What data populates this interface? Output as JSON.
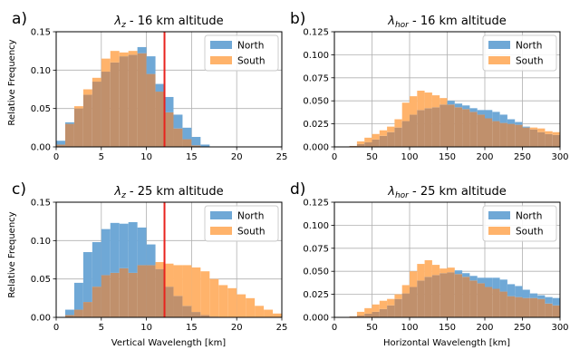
{
  "figure": {
    "ylabel": "Relative Frequency",
    "xlabel_left": "Vertical Wavelength [km]",
    "xlabel_right": "Horizontal Wavelength [km]"
  },
  "colors": {
    "north": "#6fa8d6",
    "south": "#ffb36b",
    "overlap": "#c0906c",
    "marker": "#e8231e",
    "grid": "#b0b0b0"
  },
  "chart_data": [
    {
      "type": "bar",
      "panel": "a)",
      "title_sym": "λ",
      "title_sub": "z",
      "title_rest": " - 16 km altitude",
      "xlim": [
        0,
        25
      ],
      "ylim": [
        0,
        0.15
      ],
      "xticks": [
        "0",
        "5",
        "10",
        "15",
        "20",
        "25"
      ],
      "yticks": [
        "0.00",
        "0.05",
        "0.10",
        "0.15"
      ],
      "xticks_v": [
        0,
        5,
        10,
        15,
        20,
        25
      ],
      "yticks_v": [
        0,
        0.05,
        0.1,
        0.15
      ],
      "bin_start": 0,
      "bin_width": 1,
      "vline": 12,
      "legend": [
        "North",
        "South"
      ],
      "series": [
        {
          "name": "North",
          "values": [
            0.008,
            0.032,
            0.05,
            0.068,
            0.085,
            0.098,
            0.11,
            0.118,
            0.12,
            0.13,
            0.118,
            0.082,
            0.065,
            0.042,
            0.025,
            0.013,
            0.003,
            0,
            0,
            0,
            0,
            0,
            0,
            0,
            0
          ]
        },
        {
          "name": "South",
          "values": [
            0.003,
            0.03,
            0.053,
            0.075,
            0.09,
            0.115,
            0.125,
            0.123,
            0.125,
            0.122,
            0.095,
            0.072,
            0.045,
            0.024,
            0.01,
            0.002,
            0,
            0,
            0,
            0,
            0,
            0,
            0,
            0,
            0
          ]
        }
      ]
    },
    {
      "type": "bar",
      "panel": "b)",
      "title_sym": "λ",
      "title_sub": "hor",
      "title_rest": " - 16 km altitude",
      "xlim": [
        0,
        300
      ],
      "ylim": [
        0,
        0.125
      ],
      "xticks": [
        "0",
        "50",
        "100",
        "150",
        "200",
        "250",
        "300"
      ],
      "yticks": [
        "0.000",
        "0.025",
        "0.050",
        "0.075",
        "0.100",
        "0.125"
      ],
      "xticks_v": [
        0,
        50,
        100,
        150,
        200,
        250,
        300
      ],
      "yticks_v": [
        0,
        0.025,
        0.05,
        0.075,
        0.1,
        0.125
      ],
      "bin_start": 20,
      "bin_width": 10,
      "legend": [
        "North",
        "South"
      ],
      "series": [
        {
          "name": "North",
          "values": [
            0.001,
            0.003,
            0.005,
            0.008,
            0.012,
            0.016,
            0.021,
            0.028,
            0.035,
            0.04,
            0.042,
            0.043,
            0.046,
            0.05,
            0.047,
            0.045,
            0.042,
            0.04,
            0.04,
            0.038,
            0.035,
            0.03,
            0.027,
            0.022,
            0.019,
            0.016,
            0.014,
            0.013
          ]
        },
        {
          "name": "South",
          "values": [
            0.001,
            0.006,
            0.01,
            0.014,
            0.018,
            0.022,
            0.03,
            0.048,
            0.055,
            0.061,
            0.059,
            0.056,
            0.053,
            0.046,
            0.043,
            0.041,
            0.038,
            0.035,
            0.031,
            0.028,
            0.026,
            0.025,
            0.024,
            0.021,
            0.021,
            0.02,
            0.017,
            0.016
          ]
        }
      ]
    },
    {
      "type": "bar",
      "panel": "c)",
      "title_sym": "λ",
      "title_sub": "z",
      "title_rest": " - 25 km altitude",
      "xlim": [
        0,
        25
      ],
      "ylim": [
        0,
        0.15
      ],
      "xticks": [
        "0",
        "5",
        "10",
        "15",
        "20",
        "25"
      ],
      "yticks": [
        "0.00",
        "0.05",
        "0.10",
        "0.15"
      ],
      "xticks_v": [
        0,
        5,
        10,
        15,
        20,
        25
      ],
      "yticks_v": [
        0,
        0.05,
        0.1,
        0.15
      ],
      "bin_start": 1,
      "bin_width": 1,
      "vline": 12,
      "legend": [
        "North",
        "South"
      ],
      "series": [
        {
          "name": "North",
          "values": [
            0.01,
            0.045,
            0.085,
            0.098,
            0.115,
            0.123,
            0.122,
            0.124,
            0.117,
            0.095,
            0.063,
            0.04,
            0.028,
            0.015,
            0.007,
            0.003,
            0.001,
            0,
            0,
            0,
            0,
            0,
            0,
            0
          ]
        },
        {
          "name": "South",
          "values": [
            0.003,
            0.01,
            0.02,
            0.04,
            0.055,
            0.058,
            0.064,
            0.058,
            0.068,
            0.068,
            0.072,
            0.07,
            0.068,
            0.068,
            0.065,
            0.06,
            0.05,
            0.042,
            0.038,
            0.03,
            0.025,
            0.015,
            0.01,
            0.005
          ]
        }
      ]
    },
    {
      "type": "bar",
      "panel": "d)",
      "title_sym": "λ",
      "title_sub": "hor",
      "title_rest": " - 25 km altitude",
      "xlim": [
        0,
        300
      ],
      "ylim": [
        0,
        0.125
      ],
      "xticks": [
        "0",
        "50",
        "100",
        "150",
        "200",
        "250",
        "300"
      ],
      "yticks": [
        "0.000",
        "0.025",
        "0.050",
        "0.075",
        "0.100",
        "0.125"
      ],
      "xticks_v": [
        0,
        50,
        100,
        150,
        200,
        250,
        300
      ],
      "yticks_v": [
        0,
        0.025,
        0.05,
        0.075,
        0.1,
        0.125
      ],
      "bin_start": 20,
      "bin_width": 10,
      "legend": [
        "North",
        "South"
      ],
      "series": [
        {
          "name": "North",
          "values": [
            0.001,
            0.002,
            0.004,
            0.006,
            0.009,
            0.013,
            0.02,
            0.026,
            0.033,
            0.04,
            0.044,
            0.046,
            0.048,
            0.049,
            0.051,
            0.048,
            0.045,
            0.043,
            0.043,
            0.043,
            0.041,
            0.036,
            0.034,
            0.03,
            0.026,
            0.024,
            0.022,
            0.021
          ]
        },
        {
          "name": "South",
          "values": [
            0.001,
            0.006,
            0.01,
            0.014,
            0.018,
            0.02,
            0.025,
            0.035,
            0.05,
            0.058,
            0.062,
            0.057,
            0.053,
            0.054,
            0.047,
            0.044,
            0.04,
            0.037,
            0.033,
            0.031,
            0.028,
            0.023,
            0.022,
            0.021,
            0.021,
            0.02,
            0.015,
            0.013
          ]
        }
      ]
    }
  ]
}
